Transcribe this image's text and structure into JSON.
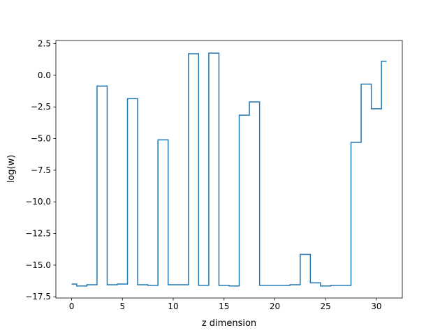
{
  "chart_data": {
    "type": "line",
    "drawstyle": "steps-mid",
    "xlabel": "z dimension",
    "ylabel": "log(w)",
    "xlim": [
      -1.55,
      32.55
    ],
    "ylim": [
      -17.6,
      2.75
    ],
    "grid": false,
    "legend": "none",
    "x_ticks": [
      0,
      5,
      10,
      15,
      20,
      25,
      30
    ],
    "y_ticks": [
      2.5,
      0.0,
      -2.5,
      -5.0,
      -7.5,
      -10.0,
      -12.5,
      -15.0,
      -17.5
    ],
    "x_tick_labels": [
      "0",
      "5",
      "10",
      "15",
      "20",
      "25",
      "30"
    ],
    "y_tick_labels": [
      "2.5",
      "0.0",
      "−2.5",
      "−5.0",
      "−7.5",
      "−10.0",
      "−12.5",
      "−15.0",
      "−17.5"
    ],
    "series": [
      {
        "color": "#1f77b4",
        "x": [
          0,
          1,
          2,
          3,
          4,
          5,
          6,
          7,
          8,
          9,
          10,
          11,
          12,
          13,
          14,
          15,
          16,
          17,
          18,
          19,
          20,
          21,
          22,
          23,
          24,
          25,
          26,
          27,
          28,
          29,
          30,
          31
        ],
        "y": [
          -16.5,
          -16.65,
          -16.55,
          -0.85,
          -16.55,
          -16.5,
          -1.85,
          -16.55,
          -16.6,
          -5.1,
          -16.55,
          -16.55,
          1.7,
          -16.6,
          1.75,
          -16.6,
          -16.65,
          -3.15,
          -2.1,
          -16.6,
          -16.6,
          -16.6,
          -16.55,
          -14.15,
          -16.4,
          -16.65,
          -16.6,
          -16.6,
          -5.3,
          -0.7,
          -2.65,
          1.1
        ]
      }
    ]
  }
}
